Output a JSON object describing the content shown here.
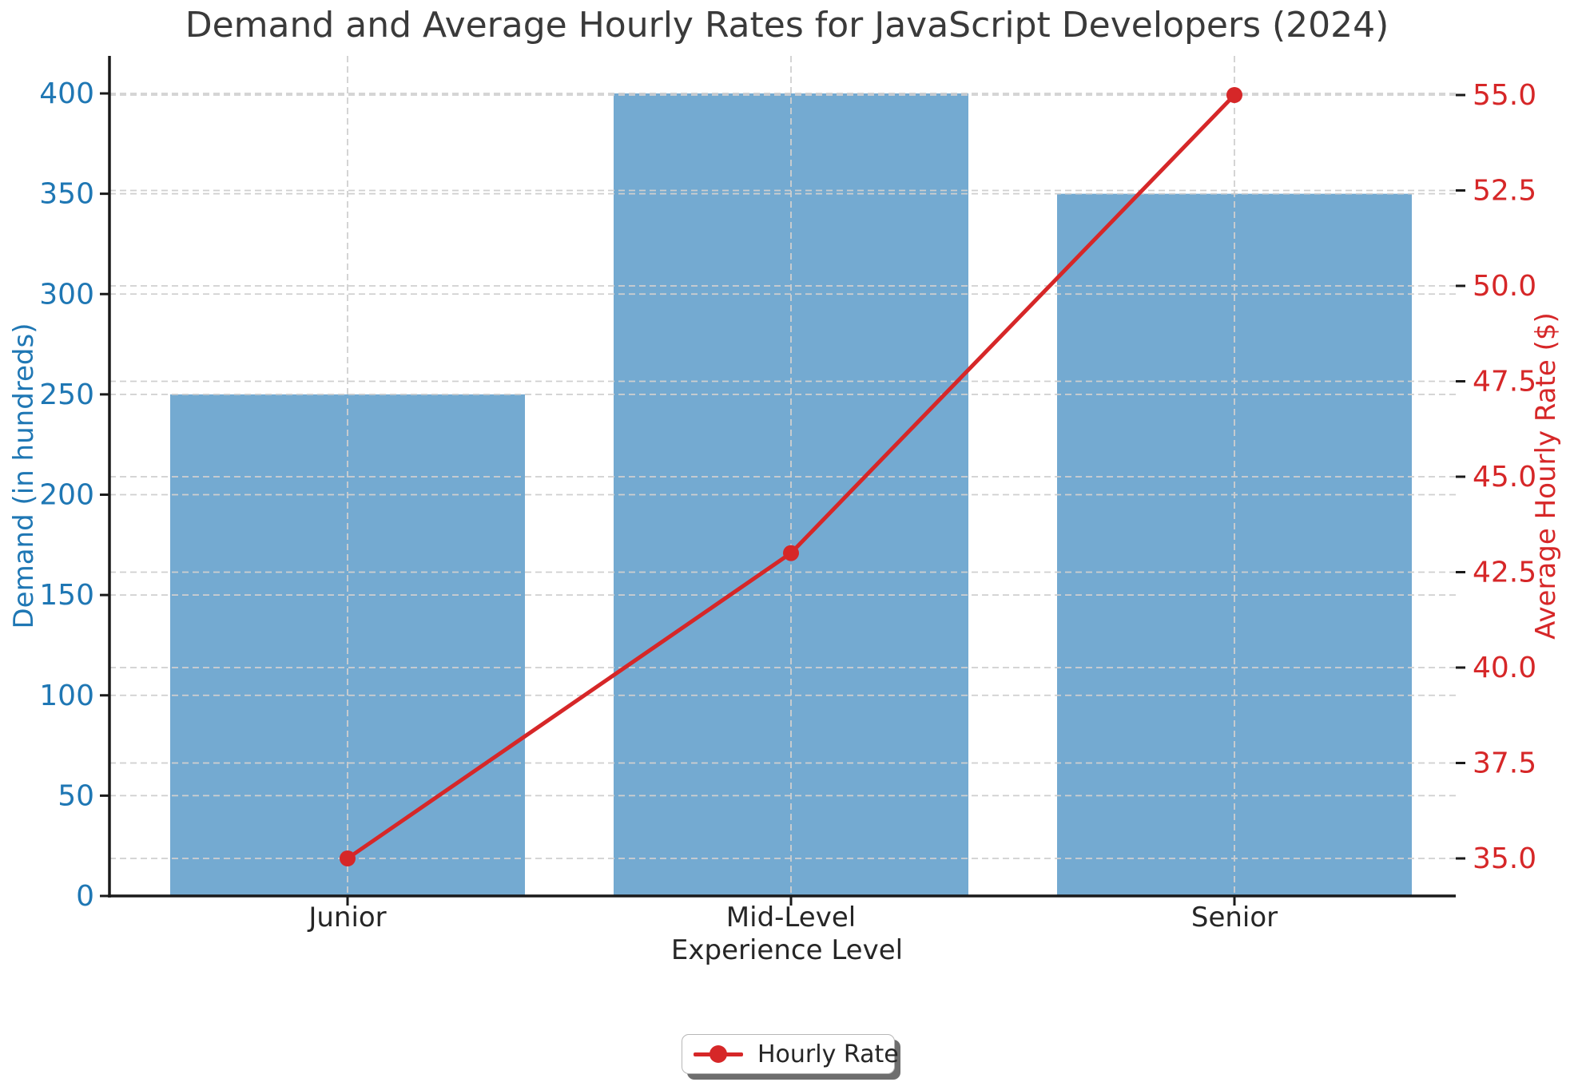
{
  "title": "Demand and Average Hourly Rates for JavaScript Developers (2024)",
  "axes": {
    "x_label": "Experience Level",
    "y_left_label": "Demand (in hundreds)",
    "y_right_label": "Average Hourly Rate ($)",
    "y_left_ticks": [
      0,
      50,
      100,
      150,
      200,
      250,
      300,
      350,
      400
    ],
    "y_right_ticks": [
      35.0,
      37.5,
      40.0,
      42.5,
      45.0,
      47.5,
      50.0,
      52.5,
      55.0
    ]
  },
  "legend": {
    "items": [
      {
        "label": "Hourly Rate",
        "marker": "line-dot-icon",
        "color": "#d62728"
      }
    ]
  },
  "colors": {
    "bar": "#74aad1",
    "line": "#d62728",
    "left_axis_text": "#1f77b4",
    "right_axis_text": "#d62728",
    "x_axis_text": "#262626",
    "title_text": "#3a3a3a",
    "grid": "#cfcfcf",
    "spine": "#1a1a1a"
  },
  "chart_data": {
    "type": "bar",
    "subtype": "bar+line-dual-axis",
    "title": "Demand and Average Hourly Rates for JavaScript Developers (2024)",
    "categories": [
      "Junior",
      "Mid-Level",
      "Senior"
    ],
    "series": [
      {
        "name": "Demand",
        "type": "bar",
        "axis": "left",
        "values": [
          250,
          400,
          350
        ]
      },
      {
        "name": "Hourly Rate",
        "type": "line",
        "axis": "right",
        "values": [
          35,
          43,
          55
        ]
      }
    ],
    "xlabel": "Experience Level",
    "ylabel_left": "Demand (in hundreds)",
    "ylabel_right": "Average Hourly Rate ($)",
    "ylim_left": [
      0,
      419
    ],
    "ylim_right": [
      34.0,
      56.0
    ],
    "grid": true,
    "grid_style": "dashed",
    "legend_position": "bottom-center"
  }
}
